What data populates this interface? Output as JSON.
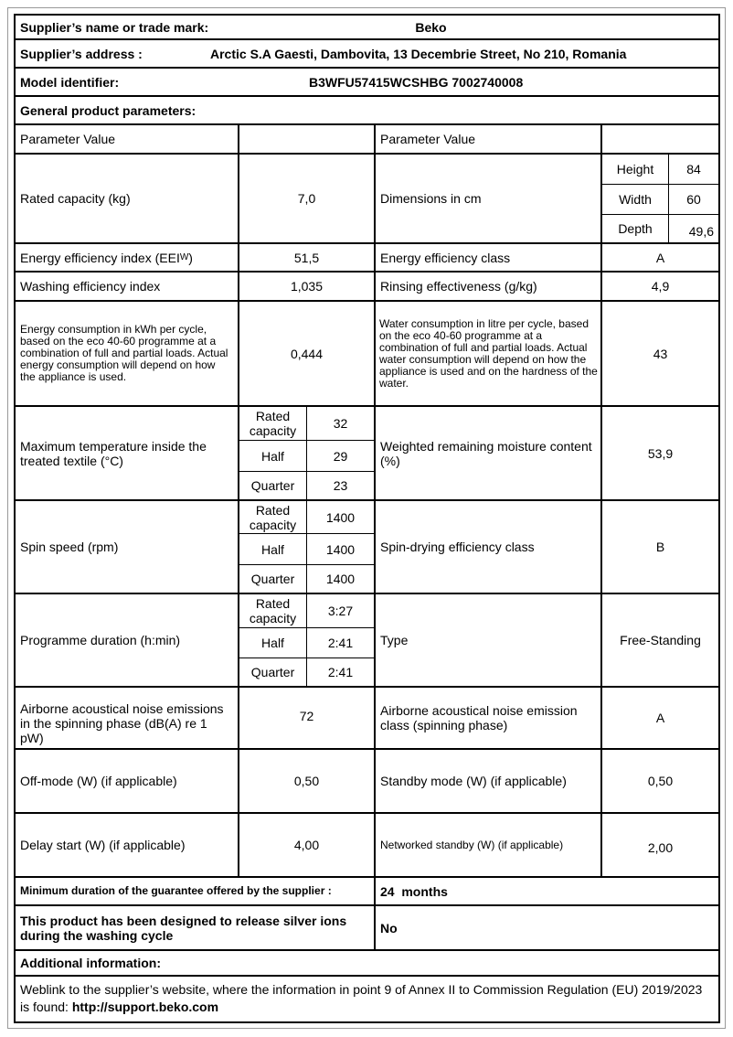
{
  "supplier_name_label": "Supplier’s name or trade mark:",
  "supplier_name": "Beko",
  "supplier_address_label": "Supplier’s address :",
  "supplier_address": "Arctic S.A  Gaesti, Dambovita, 13 Decembrie Street, No 210, Romania",
  "model_label": "Model identifier:",
  "model": "B3WFU57415WCSHBG 7002740008",
  "general_label": "General product parameters:",
  "param_header": "Parameter Value",
  "rated_capacity": {
    "label": "Rated capacity (kg)",
    "value": "7,0"
  },
  "dimensions": {
    "label": "Dimensions in cm",
    "height_label": "Height",
    "height": "84",
    "width_label": "Width",
    "width": "60",
    "depth_label": "Depth",
    "depth": "49,6"
  },
  "eei": {
    "label": "Energy efficiency index (EEI",
    "sub": "W",
    "suffix": " )",
    "value": "51,5"
  },
  "energy_class": {
    "label": "Energy efficiency class",
    "value": "A"
  },
  "washing_index": {
    "label": "Washing efficiency index",
    "value": "1,035"
  },
  "rinsing": {
    "label": "Rinsing effectiveness (g/kg)",
    "value": "4,9"
  },
  "energy_consumption": {
    "label": "Energy consumption in kWh per cycle, based on the eco 40-60 programme at a combination of full and partial loads. Actual energy consumption will depend on how the appliance is used.",
    "value": "0,444"
  },
  "water_consumption": {
    "label": "Water consumption in litre per cycle, based on the eco 40-60 programme at a combination of full and partial loads. Actual water consumption will depend on how the appliance is used and on the hardness of the water.",
    "value": "43"
  },
  "load_labels": {
    "rated": "Rated capacity",
    "half": "Half",
    "quarter": "Quarter"
  },
  "max_temp": {
    "label": "Maximum temperature inside the treated textile (°C)",
    "rated": "32",
    "half": "29",
    "quarter": "23"
  },
  "moisture": {
    "label": "Weighted remaining moisture content (%)",
    "value": "53,9"
  },
  "spin_speed": {
    "label": "Spin speed (rpm)",
    "rated": "1400",
    "half": "1400",
    "quarter": "1400"
  },
  "spin_class": {
    "label": "Spin-drying efficiency class",
    "value": "B"
  },
  "duration": {
    "label": "Programme duration (h:min)",
    "rated": "3:27",
    "half": "2:41",
    "quarter": "2:41"
  },
  "type": {
    "label": "Type",
    "value": "Free-Standing"
  },
  "noise": {
    "label": "Airborne acoustical noise emissions in the spinning phase (dB(A) re 1 pW)",
    "value": "72"
  },
  "noise_class": {
    "label": "Airborne acoustical noise emission class (spinning phase)",
    "value": "A"
  },
  "off_mode": {
    "label": "Off-mode (W) (if applicable)",
    "value": "0,50"
  },
  "standby": {
    "label": "Standby mode (W) (if applicable)",
    "value": "0,50"
  },
  "delay_start": {
    "label": "Delay start (W) (if applicable)",
    "value": "4,00"
  },
  "networked_standby": {
    "label": "Networked standby (W) (if applicable)",
    "value": "2,00"
  },
  "guarantee": {
    "label": "Minimum duration of the guarantee offered by the supplier :",
    "value": "24  months"
  },
  "silver_ions": {
    "label": "This product has been designed to release silver ions during the washing cycle",
    "value": "No"
  },
  "additional_label": "Additional information:",
  "weblink": {
    "text": "Weblink to the supplier’s website, where the information in point 9 of Annex II to Commission Regulation (EU) 2019/2023 is found: ",
    "url": "http://support.beko.com"
  }
}
